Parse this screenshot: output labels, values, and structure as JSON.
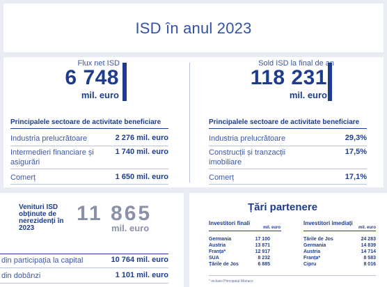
{
  "title": "ISD în anul 2023",
  "left_kpi": {
    "label": "Flux net ISD",
    "value": "6 748",
    "unit": "mil. euro"
  },
  "right_kpi": {
    "label": "Sold ISD la final de an",
    "value": "118 231",
    "unit": "mil. euro"
  },
  "left_sectors": {
    "title": "Principalele sectoare de activitate beneficiare",
    "rows": [
      {
        "label": "Industria prelucrătoare",
        "value": "2 276 mil. euro"
      },
      {
        "label": "Intermedieri financiare și asigurări",
        "value": "1 740 mil. euro"
      },
      {
        "label": "Comerț",
        "value": "1 650 mil. euro"
      }
    ]
  },
  "right_sectors": {
    "title": "Principalele sectoare de activitate beneficiare",
    "rows": [
      {
        "label": "Industria prelucrătoare",
        "value": "29,3%"
      },
      {
        "label": "Construcții și tranzacții imobiliare",
        "value": "17,5%"
      },
      {
        "label": "Comerț",
        "value": "17,1%"
      }
    ]
  },
  "revenues": {
    "label": "Venituri ISD obținute de nerezidenți în 2023",
    "value": "11 865",
    "unit": "mil. euro",
    "rows": [
      {
        "label": "din participația la capital",
        "value": "10 764 mil. euro"
      },
      {
        "label": "din dobânzi",
        "value": "1 101 mil. euro"
      }
    ]
  },
  "partners": {
    "title": "Țări partenere",
    "final": {
      "header": "Investitori finali",
      "unit": "mil. euro",
      "rows": [
        {
          "country": "Germania",
          "value": "17 100"
        },
        {
          "country": "Austria",
          "value": "13 871"
        },
        {
          "country": "Franța*",
          "value": "12 917"
        },
        {
          "country": "SUA",
          "value": "8 232"
        },
        {
          "country": "Țările de Jos",
          "value": "6 885"
        }
      ]
    },
    "immediate": {
      "header": "Investitori imediați",
      "unit": "mil. euro",
      "rows": [
        {
          "country": "Țările de Jos",
          "value": "24 283"
        },
        {
          "country": "Germania",
          "value": "14 839"
        },
        {
          "country": "Austria",
          "value": "14 714"
        },
        {
          "country": "Franța*",
          "value": "8 583"
        },
        {
          "country": "Cipru",
          "value": "8 016"
        }
      ]
    },
    "footnote": "* inclusiv Principatul Monaco"
  },
  "colors": {
    "navy": "#1d3c8e",
    "text_blue": "#3c57a8",
    "grey_value": "#8a91a8",
    "background": "#e9ecf3"
  }
}
